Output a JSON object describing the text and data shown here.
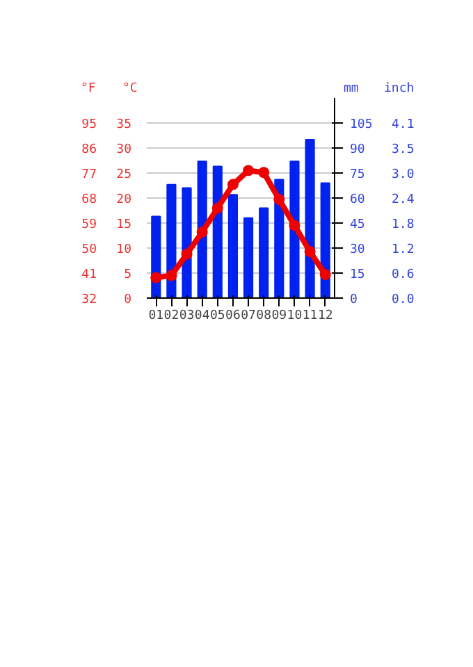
{
  "chart_data": {
    "type": "bar",
    "categories": [
      "01",
      "02",
      "03",
      "04",
      "05",
      "06",
      "07",
      "08",
      "09",
      "10",
      "11",
      "12"
    ],
    "series": [
      {
        "axis": "y2",
        "color": "#0022ee",
        "values": [
          49,
          68,
          66,
          82,
          79,
          62,
          48,
          54,
          71,
          82,
          95,
          69
        ]
      },
      {
        "type": "line",
        "axis": "y",
        "color": "#ee0000",
        "marker": "circle",
        "line_style": "solid",
        "values": [
          4.1,
          4.5,
          8.8,
          13.2,
          18.0,
          22.7,
          25.5,
          25.1,
          19.7,
          14.5,
          9.3,
          4.7
        ]
      }
    ],
    "ylabel": "°C",
    "y2label": "mm",
    "y3label": "°F",
    "ylim": [
      0,
      40
    ],
    "yticks": [
      0,
      5,
      10,
      15,
      20,
      25,
      30,
      35
    ],
    "y2lim": [
      0,
      120
    ],
    "y2ticks": [
      0,
      15,
      30,
      45,
      60,
      75,
      90,
      105
    ],
    "y3lim": [
      32,
      104
    ],
    "y3ticks": [
      32,
      41,
      50,
      59,
      68,
      77,
      86,
      95
    ],
    "annotations": [
      "inch",
      "0.0",
      "0.6",
      "1.2",
      "1.8",
      "2.4",
      "3.0",
      "3.5",
      "4.1"
    ],
    "grid": "y"
  }
}
